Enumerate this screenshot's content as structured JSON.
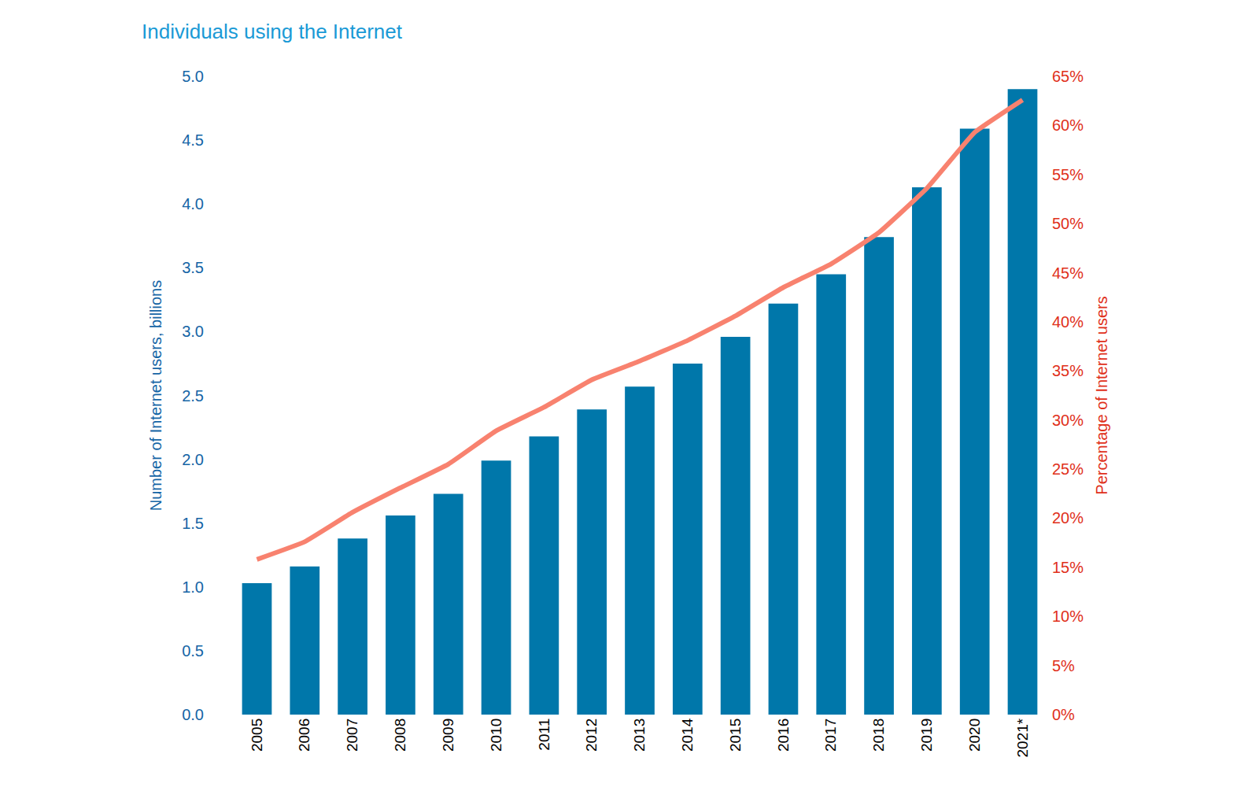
{
  "chart_data": {
    "type": "bar",
    "title": "Individuals using the Internet",
    "categories": [
      "2005",
      "2006",
      "2007",
      "2008",
      "2009",
      "2010",
      "2011",
      "2012",
      "2013",
      "2014",
      "2015",
      "2016",
      "2017",
      "2018",
      "2019",
      "2020",
      "2021*"
    ],
    "series": [
      {
        "name": "Number of Internet users, billions",
        "type": "bar",
        "color": "#0077aa",
        "values": [
          1.03,
          1.16,
          1.38,
          1.56,
          1.73,
          1.99,
          2.18,
          2.39,
          2.57,
          2.75,
          2.96,
          3.22,
          3.45,
          3.74,
          4.13,
          4.59,
          4.9
        ]
      },
      {
        "name": "Percentage of Internet users",
        "type": "line",
        "color": "#f8826f",
        "axis": "y2",
        "values": [
          15.8,
          17.6,
          20.6,
          23.1,
          25.5,
          28.9,
          31.3,
          34.1,
          36.0,
          38.1,
          40.6,
          43.5,
          45.9,
          49.1,
          53.6,
          59.3,
          62.6
        ]
      }
    ],
    "y_label": "Number of Internet users, billions",
    "y2_label": "Percentage of Internet users",
    "ylim": [
      0,
      5
    ],
    "yticks": [
      {
        "value": 0,
        "label": "0.0"
      },
      0.5,
      {
        "value": 1,
        "label": "1.0"
      },
      1.5,
      {
        "value": 2,
        "label": "2.0"
      },
      2.5,
      {
        "value": 3,
        "label": "3.0"
      },
      3.5,
      {
        "value": 4,
        "label": "4.0"
      },
      4.5,
      {
        "value": 5,
        "label": "5.0"
      }
    ],
    "y2lim": [
      0,
      65
    ],
    "y2ticks": [
      {
        "value": 0,
        "label": "0%"
      },
      {
        "value": 5,
        "label": "5%"
      },
      {
        "value": 10,
        "label": "10%"
      },
      {
        "value": 15,
        "label": "15%"
      },
      {
        "value": 20,
        "label": "20%"
      },
      {
        "value": 25,
        "label": "25%"
      },
      {
        "value": 30,
        "label": "30%"
      },
      {
        "value": 35,
        "label": "35%"
      },
      {
        "value": 40,
        "label": "40%"
      },
      {
        "value": 45,
        "label": "45%"
      },
      {
        "value": 50,
        "label": "50%"
      },
      {
        "value": 55,
        "label": "55%"
      },
      {
        "value": 60,
        "label": "60%"
      },
      {
        "value": 65,
        "label": "65%"
      }
    ],
    "grid": false
  }
}
